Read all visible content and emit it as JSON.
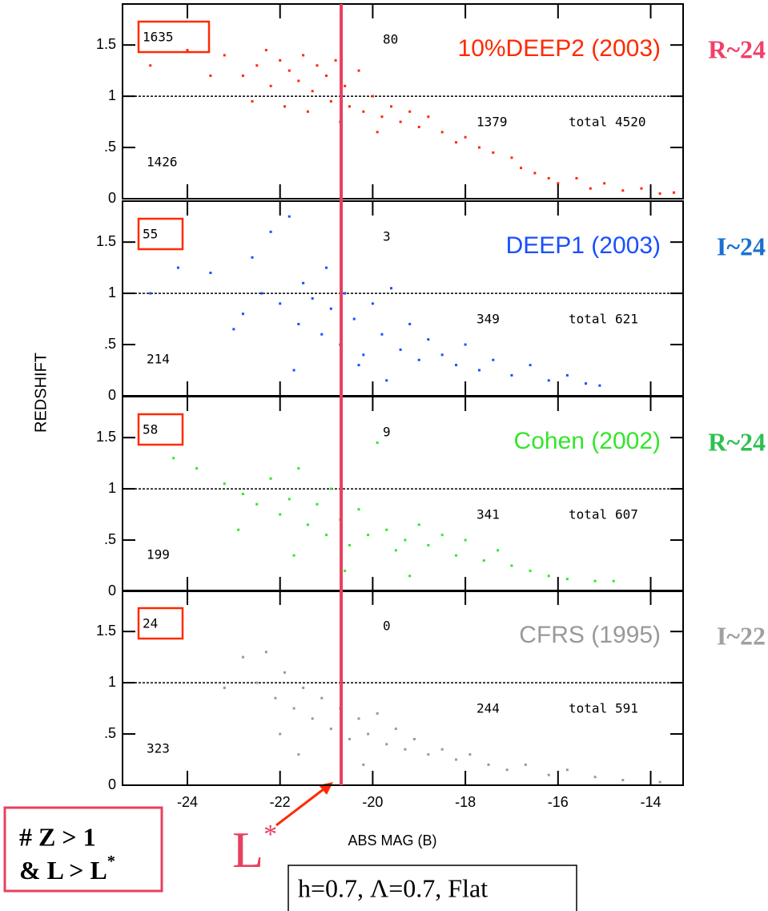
{
  "ylabel": "REDSHIFT",
  "xlabel": "ABS MAG (B)",
  "total_label": "total",
  "z_threshold": 1,
  "lstar_mag": -20.68,
  "annotation": {
    "lines": [
      "# Z > 1",
      "& L > L"
    ],
    "sup": "*"
  },
  "lstar_label": {
    "text": "L",
    "sup": "*"
  },
  "cosmology": "h=0.7, Λ=0.7, Flat",
  "chart_data": [
    {
      "type": "scatter",
      "title": "10%DEEP2 (2003)",
      "limit_label": "R~24",
      "color": "#ff2a00",
      "limit_color": "#f0406a",
      "counts": {
        "box": 1635,
        "upper_right": 80,
        "lower_right": 1379,
        "lower_left": 1426
      },
      "total": 4520,
      "xlim": [
        -25.4,
        -13.3
      ],
      "xticks": [
        -24,
        -22,
        -20,
        -18,
        -16,
        -14
      ],
      "ylim": [
        0,
        1.9
      ],
      "yticks": [
        0,
        {
          "value": 0.5,
          "label": ".5"
        },
        1,
        1.5
      ],
      "x": [
        -24.8,
        -24,
        -23.2,
        -22.8,
        -22.5,
        -22.2,
        -22,
        -21.8,
        -21.6,
        -21.5,
        -21.3,
        -21.2,
        -21,
        -20.9,
        -20.8,
        -20.6,
        -20.5,
        -20.3,
        -20.2,
        -20,
        -19.8,
        -19.6,
        -19.4,
        -19.2,
        -19,
        -18.8,
        -18.5,
        -18.2,
        -18,
        -17.7,
        -17.4,
        -17,
        -16.8,
        -16.5,
        -16.2,
        -16,
        -15.6,
        -15.3,
        -15,
        -14.6,
        -14.2,
        -13.8,
        -13.5,
        -21.9,
        -21.4,
        -20.7,
        -22.3,
        -23.5,
        -19.9,
        -22.6
      ],
      "y": [
        1.3,
        1.45,
        1.4,
        1.2,
        1.3,
        1.1,
        1.35,
        1.25,
        1.15,
        1.4,
        1.05,
        1.3,
        1.2,
        0.95,
        1.35,
        1.1,
        0.9,
        1.25,
        0.85,
        1.0,
        0.8,
        0.9,
        0.75,
        0.85,
        0.7,
        0.8,
        0.65,
        0.55,
        0.6,
        0.5,
        0.45,
        0.4,
        0.3,
        0.25,
        0.2,
        0.15,
        0.2,
        0.1,
        0.15,
        0.08,
        0.1,
        0.05,
        0.06,
        0.9,
        0.85,
        0.75,
        1.45,
        1.2,
        0.65,
        0.95
      ]
    },
    {
      "type": "scatter",
      "title": "DEEP1 (2003)",
      "limit_label": "I~24",
      "color": "#1a4fff",
      "limit_color": "#1a6fd0",
      "counts": {
        "box": 55,
        "upper_right": 3,
        "lower_right": 349,
        "lower_left": 214
      },
      "total": 621,
      "xlim": [
        -25.4,
        -13.3
      ],
      "xticks": [
        -24,
        -22,
        -20,
        -18,
        -16,
        -14
      ],
      "ylim": [
        0,
        1.9
      ],
      "yticks": [
        0,
        {
          "value": 0.5,
          "label": ".5"
        },
        1,
        1.5
      ],
      "x": [
        -24.8,
        -24.2,
        -23.5,
        -23,
        -22.8,
        -22.4,
        -22.2,
        -22,
        -21.8,
        -21.6,
        -21.5,
        -21.3,
        -21.1,
        -21,
        -20.9,
        -20.7,
        -20.6,
        -20.4,
        -20.2,
        -20,
        -19.8,
        -19.6,
        -19.4,
        -19.2,
        -19,
        -18.8,
        -18.5,
        -18.2,
        -18,
        -17.7,
        -17.4,
        -17,
        -16.6,
        -16.2,
        -15.8,
        -15.4,
        -15.1,
        -21.7,
        -20.3,
        -22.6,
        -19.7
      ],
      "y": [
        1.0,
        1.25,
        1.2,
        0.65,
        0.8,
        1.0,
        1.6,
        0.9,
        1.75,
        0.7,
        1.1,
        0.95,
        0.6,
        1.25,
        0.85,
        0.5,
        1.0,
        0.75,
        0.4,
        0.9,
        0.6,
        1.05,
        0.45,
        0.7,
        0.35,
        0.55,
        0.4,
        0.3,
        0.5,
        0.25,
        0.35,
        0.2,
        0.3,
        0.15,
        0.2,
        0.12,
        0.1,
        0.25,
        0.3,
        1.35,
        0.15
      ]
    },
    {
      "type": "scatter",
      "title": "Cohen (2002)",
      "limit_label": "R~24",
      "color": "#33e62a",
      "limit_color": "#2fc050",
      "counts": {
        "box": 58,
        "upper_right": 9,
        "lower_right": 341,
        "lower_left": 199
      },
      "total": 607,
      "xlim": [
        -25.4,
        -13.3
      ],
      "xticks": [
        -24,
        -22,
        -20,
        -18,
        -16,
        -14
      ],
      "ylim": [
        0,
        1.9
      ],
      "yticks": [
        0,
        {
          "value": 0.5,
          "label": ".5"
        },
        1,
        1.5
      ],
      "x": [
        -24.3,
        -23.8,
        -23.2,
        -22.8,
        -22.5,
        -22.2,
        -22,
        -21.8,
        -21.6,
        -21.4,
        -21.2,
        -21,
        -20.9,
        -20.7,
        -20.5,
        -20.3,
        -20.1,
        -19.9,
        -19.7,
        -19.5,
        -19.3,
        -19,
        -18.8,
        -18.5,
        -18.2,
        -18,
        -17.6,
        -17.3,
        -17,
        -16.6,
        -16.2,
        -15.8,
        -15.2,
        -14.8,
        -21.7,
        -20.6,
        -19.2,
        -22.9
      ],
      "y": [
        1.3,
        1.2,
        1.05,
        0.95,
        0.85,
        1.1,
        0.75,
        0.9,
        1.2,
        0.65,
        0.85,
        0.55,
        1.0,
        0.7,
        0.45,
        0.8,
        0.55,
        1.45,
        0.6,
        0.4,
        0.5,
        0.65,
        0.45,
        0.55,
        0.35,
        0.5,
        0.3,
        0.4,
        0.25,
        0.2,
        0.15,
        0.12,
        0.1,
        0.1,
        0.35,
        0.2,
        0.15,
        0.6
      ]
    },
    {
      "type": "scatter",
      "title": "CFRS (1995)",
      "limit_label": "I~22",
      "color": "#999999",
      "limit_color": "#a0a0a0",
      "counts": {
        "box": 24,
        "upper_right": 0,
        "lower_right": 244,
        "lower_left": 323
      },
      "total": 591,
      "xlim": [
        -25.4,
        -13.3
      ],
      "xticks": [
        -24,
        -22,
        -20,
        -18,
        -16,
        -14
      ],
      "ylim": [
        0,
        1.9
      ],
      "yticks": [
        0,
        {
          "value": 0.5,
          "label": ".5"
        },
        1,
        1.5
      ],
      "x": [
        -23.2,
        -22.8,
        -22.5,
        -22.3,
        -22.1,
        -21.9,
        -21.7,
        -21.5,
        -21.3,
        -21.1,
        -20.9,
        -20.7,
        -20.5,
        -20.3,
        -20.1,
        -19.9,
        -19.7,
        -19.5,
        -19.3,
        -19.1,
        -18.8,
        -18.5,
        -18.2,
        -17.9,
        -17.5,
        -17.1,
        -16.7,
        -16.2,
        -15.8,
        -15.2,
        -14.6,
        -13.8,
        -21.6,
        -20.2,
        -22
      ],
      "y": [
        0.95,
        1.25,
        1.0,
        1.3,
        0.85,
        1.1,
        0.75,
        0.95,
        0.65,
        0.85,
        0.55,
        0.75,
        0.45,
        0.65,
        0.5,
        0.7,
        0.4,
        0.55,
        0.35,
        0.45,
        0.3,
        0.35,
        0.25,
        0.3,
        0.2,
        0.15,
        0.2,
        0.1,
        0.15,
        0.08,
        0.05,
        0.03,
        0.3,
        0.2,
        0.5
      ]
    }
  ]
}
